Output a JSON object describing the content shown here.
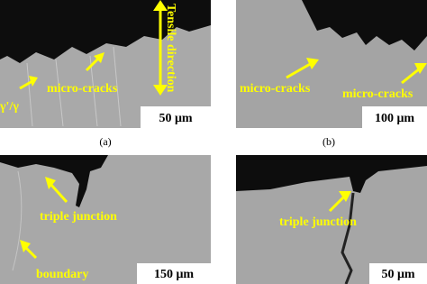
{
  "panels": [
    {
      "label": "(a)",
      "scale_bar": "50 μm",
      "annotations": [
        "Tensile direction",
        "micro-cracks",
        "γ'/γ"
      ]
    },
    {
      "label": "(b)",
      "scale_bar": "100 μm",
      "annotations": [
        "micro-cracks",
        "micro-cracks"
      ]
    },
    {
      "scale_bar": "150 μm",
      "annotations": [
        "triple junction",
        "boundary"
      ]
    },
    {
      "scale_bar": "50 μm",
      "annotations": [
        "triple junction"
      ]
    }
  ]
}
